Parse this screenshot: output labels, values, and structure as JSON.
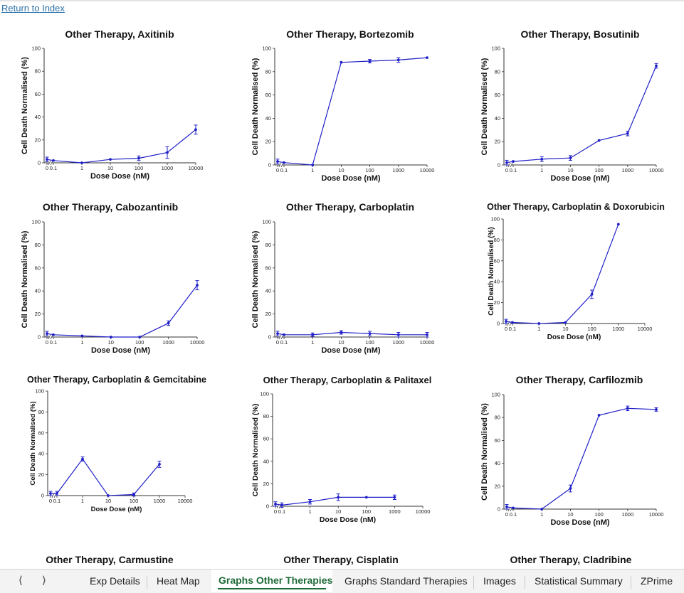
{
  "link": {
    "return_label": "Return to Index"
  },
  "tabs": {
    "prev_icon": "chevron-left-icon",
    "next_icon": "chevron-right-icon",
    "items": [
      {
        "label": "Exp Details"
      },
      {
        "label": "Heat Map"
      },
      {
        "label": "Graphs Other Therapies",
        "active": true
      },
      {
        "label": "Graphs Standard Therapies"
      },
      {
        "label": "Images"
      },
      {
        "label": "Statistical Summary"
      },
      {
        "label": "ZPrime"
      }
    ]
  },
  "style": {
    "series_color": "#1f1fc8",
    "active_tab_color": "#1e6b38"
  },
  "chart_data": [
    {
      "type": "line",
      "title": "Other Therapy, Axitinib",
      "xlabel": "Dose Dose (nM)",
      "ylabel": "Cell Death Normalised (%)",
      "x_ticks": [
        "0",
        "0.1",
        "1",
        "10",
        "100",
        "1000",
        "10000"
      ],
      "y_ticks": [
        0,
        20,
        40,
        60,
        80,
        100
      ],
      "ylim": [
        0,
        100
      ],
      "series": [
        {
          "points": [
            {
              "x": "0",
              "y": 3,
              "err": 2
            },
            {
              "x": "0.1",
              "y": 2
            },
            {
              "x": "1",
              "y": 0
            },
            {
              "x": "10",
              "y": 3
            },
            {
              "x": "100",
              "y": 4,
              "err": 2
            },
            {
              "x": "1000",
              "y": 9,
              "err": 5
            },
            {
              "x": "10000",
              "y": 29,
              "err": 4
            }
          ]
        }
      ]
    },
    {
      "type": "line",
      "title": "Other Therapy, Bortezomib",
      "xlabel": "Dose Dose (nM)",
      "ylabel": "Cell Death Normalised (%)",
      "x_ticks": [
        "0",
        "0.1",
        "1",
        "10",
        "100",
        "1000",
        "10000"
      ],
      "y_ticks": [
        0,
        20,
        40,
        60,
        80,
        100
      ],
      "ylim": [
        0,
        100
      ],
      "series": [
        {
          "points": [
            {
              "x": "0",
              "y": 3,
              "err": 2
            },
            {
              "x": "0.1",
              "y": 2
            },
            {
              "x": "1",
              "y": 0
            },
            {
              "x": "10",
              "y": 88
            },
            {
              "x": "100",
              "y": 89,
              "err": 1.5
            },
            {
              "x": "1000",
              "y": 90,
              "err": 2
            },
            {
              "x": "10000",
              "y": 92
            }
          ]
        }
      ]
    },
    {
      "type": "line",
      "title": "Other Therapy, Bosutinib",
      "xlabel": "Dose Dose (nM)",
      "ylabel": "Cell Death Normalised (%)",
      "x_ticks": [
        "0",
        "0.1",
        "1",
        "10",
        "100",
        "1000",
        "10000"
      ],
      "y_ticks": [
        0,
        20,
        40,
        60,
        80,
        100
      ],
      "ylim": [
        0,
        100
      ],
      "series": [
        {
          "points": [
            {
              "x": "0",
              "y": 2,
              "err": 2
            },
            {
              "x": "0.1",
              "y": 3
            },
            {
              "x": "1",
              "y": 5,
              "err": 2
            },
            {
              "x": "10",
              "y": 6,
              "err": 2
            },
            {
              "x": "100",
              "y": 21
            },
            {
              "x": "1000",
              "y": 27,
              "err": 2
            },
            {
              "x": "10000",
              "y": 85,
              "err": 2
            }
          ]
        }
      ]
    },
    {
      "type": "line",
      "title": "Other Therapy, Cabozantinib",
      "xlabel": "Dose Dose (nM)",
      "ylabel": "Cell Death Normalised (%)",
      "x_ticks": [
        "0",
        "0.1",
        "1",
        "10",
        "100",
        "1000",
        "10000"
      ],
      "y_ticks": [
        0,
        20,
        40,
        60,
        80,
        100
      ],
      "ylim": [
        0,
        100
      ],
      "series": [
        {
          "points": [
            {
              "x": "0",
              "y": 3,
              "err": 2
            },
            {
              "x": "0.1",
              "y": 2
            },
            {
              "x": "1",
              "y": 1
            },
            {
              "x": "10",
              "y": 0
            },
            {
              "x": "100",
              "y": 0
            },
            {
              "x": "1000",
              "y": 12,
              "err": 2
            },
            {
              "x": "10000",
              "y": 45,
              "err": 4
            }
          ]
        }
      ]
    },
    {
      "type": "line",
      "title": "Other Therapy, Carboplatin",
      "xlabel": "Dose Dose (nM)",
      "ylabel": "Cell Death Normalised (%)",
      "x_ticks": [
        "0",
        "0.1",
        "1",
        "10",
        "100",
        "1000",
        "10000"
      ],
      "y_ticks": [
        0,
        20,
        40,
        60,
        80,
        100
      ],
      "ylim": [
        0,
        100
      ],
      "series": [
        {
          "points": [
            {
              "x": "0",
              "y": 3,
              "err": 2
            },
            {
              "x": "0.1",
              "y": 2
            },
            {
              "x": "1",
              "y": 2,
              "err": 1.5
            },
            {
              "x": "10",
              "y": 4,
              "err": 1.5
            },
            {
              "x": "100",
              "y": 3,
              "err": 2
            },
            {
              "x": "1000",
              "y": 2,
              "err": 2
            },
            {
              "x": "10000",
              "y": 2,
              "err": 2
            }
          ]
        }
      ]
    },
    {
      "type": "line",
      "title": "Other Therapy, Carboplatin & Doxorubicin",
      "xlabel": "Dose Dose (nM)",
      "ylabel": "Cell Death Normalised (%)",
      "x_ticks": [
        "0",
        "0.1",
        "1",
        "10",
        "100",
        "1000",
        "10000"
      ],
      "y_ticks": [
        0,
        20,
        40,
        60,
        80,
        100
      ],
      "ylim": [
        0,
        100
      ],
      "series": [
        {
          "points": [
            {
              "x": "0",
              "y": 2,
              "err": 2
            },
            {
              "x": "0.1",
              "y": 1
            },
            {
              "x": "1",
              "y": 0
            },
            {
              "x": "10",
              "y": 1
            },
            {
              "x": "100",
              "y": 28,
              "err": 4
            },
            {
              "x": "1000",
              "y": 95
            }
          ]
        }
      ]
    },
    {
      "type": "line",
      "title": "Other Therapy, Carboplatin & Gemcitabine",
      "xlabel": "Dose Dose (nM)",
      "ylabel": "Cell Death Normalised (%)",
      "x_ticks": [
        "0",
        "0.1",
        "1",
        "10",
        "100",
        "1000",
        "10000"
      ],
      "y_ticks": [
        0,
        20,
        40,
        60,
        80,
        100
      ],
      "ylim": [
        0,
        100
      ],
      "series": [
        {
          "points": [
            {
              "x": "0",
              "y": 2,
              "err": 2
            },
            {
              "x": "0.1",
              "y": 2,
              "err": 2
            },
            {
              "x": "1",
              "y": 35,
              "err": 2
            },
            {
              "x": "10",
              "y": 0
            },
            {
              "x": "100",
              "y": 1,
              "err": 1.5
            },
            {
              "x": "1000",
              "y": 30,
              "err": 3
            }
          ]
        }
      ]
    },
    {
      "type": "line",
      "title": "Other Therapy, Carboplatin & Palitaxel",
      "xlabel": "Dose Dose (nM)",
      "ylabel": "Cell Death Normalised (%)",
      "x_ticks": [
        "0",
        "0.1",
        "1",
        "10",
        "100",
        "1000",
        "10000"
      ],
      "y_ticks": [
        0,
        20,
        40,
        60,
        80,
        100
      ],
      "ylim": [
        0,
        100
      ],
      "series": [
        {
          "points": [
            {
              "x": "0",
              "y": 2,
              "err": 2
            },
            {
              "x": "0.1",
              "y": 1,
              "err": 2
            },
            {
              "x": "1",
              "y": 4,
              "err": 2
            },
            {
              "x": "10",
              "y": 8,
              "err": 3
            },
            {
              "x": "100",
              "y": 8
            },
            {
              "x": "1000",
              "y": 8,
              "err": 2
            }
          ]
        }
      ]
    },
    {
      "type": "line",
      "title": "Other Therapy, Carfilozmib",
      "xlabel": "Dose Dose (nM)",
      "ylabel": "Cell Death Normalised (%)",
      "x_ticks": [
        "0",
        "0.1",
        "1",
        "10",
        "100",
        "1000",
        "10000"
      ],
      "y_ticks": [
        0,
        20,
        40,
        60,
        80,
        100
      ],
      "ylim": [
        0,
        100
      ],
      "series": [
        {
          "points": [
            {
              "x": "0",
              "y": 2,
              "err": 2
            },
            {
              "x": "0.1",
              "y": 1
            },
            {
              "x": "1",
              "y": 0
            },
            {
              "x": "10",
              "y": 18,
              "err": 3
            },
            {
              "x": "100",
              "y": 82
            },
            {
              "x": "1000",
              "y": 88,
              "err": 2
            },
            {
              "x": "10000",
              "y": 87,
              "err": 1.5
            }
          ]
        }
      ]
    },
    {
      "type": "line",
      "title": "Other Therapy, Carmustine"
    },
    {
      "type": "line",
      "title": "Other Therapy, Cisplatin"
    },
    {
      "type": "line",
      "title": "Other Therapy, Cladribine"
    }
  ]
}
